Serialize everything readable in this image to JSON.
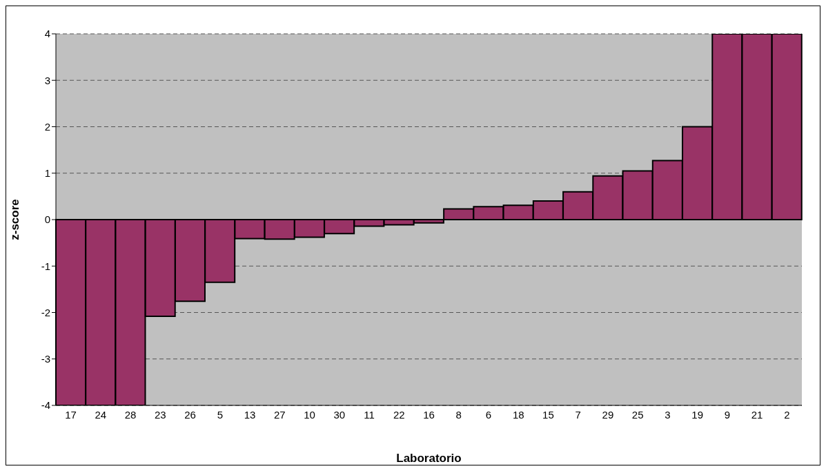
{
  "chart_data": {
    "type": "bar",
    "xlabel": "Laboratorio",
    "ylabel": "z-score",
    "categories": [
      "17",
      "24",
      "28",
      "23",
      "26",
      "5",
      "13",
      "27",
      "10",
      "30",
      "11",
      "22",
      "16",
      "8",
      "6",
      "18",
      "15",
      "7",
      "29",
      "25",
      "3",
      "19",
      "9",
      "21",
      "2"
    ],
    "values": [
      -4,
      -4,
      -4,
      -2.08,
      -1.76,
      -1.35,
      -0.41,
      -0.42,
      -0.38,
      -0.3,
      -0.14,
      -0.11,
      -0.07,
      0.23,
      0.28,
      0.31,
      0.4,
      0.6,
      0.94,
      1.05,
      1.27,
      2.0,
      4,
      4,
      4
    ],
    "color": "#993366",
    "ylim": [
      -4,
      4
    ],
    "yticks": [
      -4,
      -3,
      -2,
      -1,
      0,
      1,
      2,
      3,
      4
    ],
    "grid": "y",
    "legend": false
  }
}
